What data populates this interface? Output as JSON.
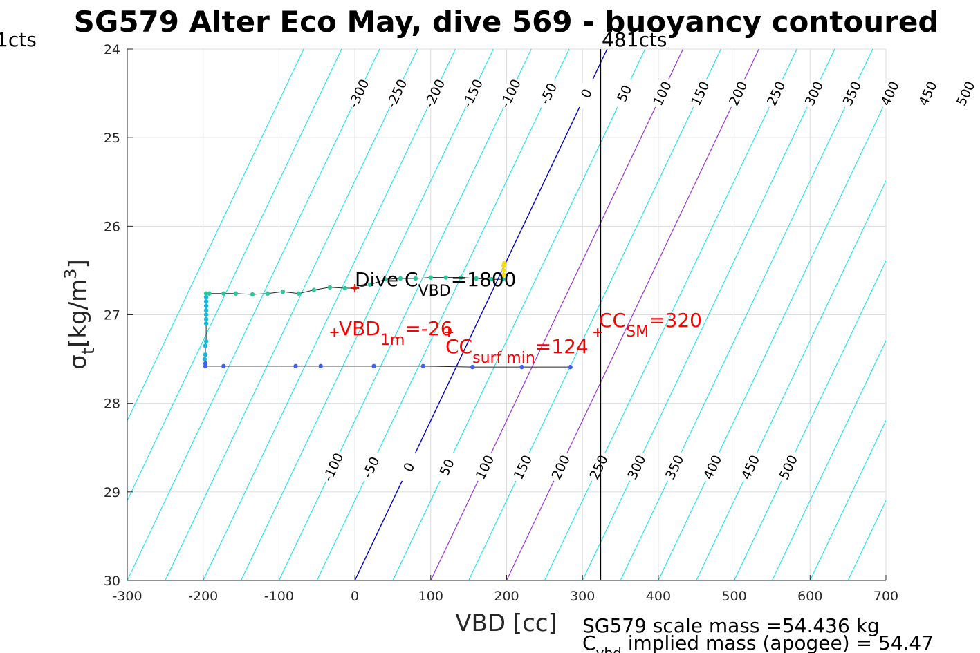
{
  "chart_data": {
    "type": "line",
    "title": "SG579 Alter Eco May, dive 569 - buoyancy contoured",
    "xlabel": "VBD [cc]",
    "ylabel_main": "σ",
    "ylabel_sub": "t",
    "ylabel_unit_pre": "[kg/m",
    "ylabel_unit_sup": "3",
    "ylabel_unit_post": "]",
    "xlim": [
      -300,
      700
    ],
    "ylim": [
      24,
      30
    ],
    "y_reversed": true,
    "grid": true,
    "xticks": [
      -300,
      -200,
      -100,
      0,
      100,
      200,
      300,
      400,
      500,
      600,
      700
    ],
    "yticks": [
      24,
      25,
      26,
      27,
      28,
      29,
      30
    ],
    "left_top_label": "1cts",
    "vline": {
      "x": 324,
      "label": "481cts",
      "color": "#000000"
    },
    "contours": {
      "values": [
        -400,
        -350,
        -300,
        -250,
        -200,
        -150,
        -100,
        -50,
        0,
        50,
        100,
        150,
        200,
        250,
        300,
        350,
        400,
        450,
        500,
        550,
        600,
        650
      ],
      "highlight_blue": [
        0
      ],
      "highlight_purple": [
        100,
        200
      ],
      "top_labels": [
        "-300",
        "-250",
        "-200",
        "-150",
        "-100",
        "-50",
        "0",
        "50",
        "100",
        "150",
        "200",
        "250",
        "300",
        "350",
        "400",
        "450",
        "500"
      ],
      "bottom_labels": [
        "-100",
        "-50",
        "0",
        "50",
        "100",
        "150",
        "200",
        "250",
        "300",
        "350",
        "400",
        "450",
        "500"
      ],
      "colors": {
        "default": "#00e5e5",
        "blue": "#0000cc",
        "purple": "#9933dd"
      }
    },
    "series": [
      {
        "points": [
          [
            284,
            27.59
          ],
          [
            220,
            27.59
          ],
          [
            155,
            27.59
          ],
          [
            90,
            27.58
          ],
          [
            25,
            27.58
          ],
          [
            -45,
            27.58
          ],
          [
            -78,
            27.58
          ],
          [
            -173,
            27.58
          ],
          [
            -197,
            27.58
          ],
          [
            -197,
            27.55
          ],
          [
            -198,
            27.5
          ],
          [
            -197,
            27.45
          ],
          [
            -197,
            27.35
          ],
          [
            -196,
            27.3
          ],
          [
            -196,
            27.1
          ],
          [
            -196,
            27.05
          ],
          [
            -196,
            27.0
          ],
          [
            -196,
            26.95
          ],
          [
            -196,
            26.9
          ],
          [
            -196,
            26.85
          ],
          [
            -196,
            26.8
          ],
          [
            -196,
            26.76
          ],
          [
            -192,
            26.76
          ],
          [
            -173,
            26.76
          ],
          [
            -157,
            26.76
          ],
          [
            -135,
            26.77
          ],
          [
            -115,
            26.76
          ],
          [
            -95,
            26.74
          ],
          [
            -74,
            26.76
          ],
          [
            -54,
            26.72
          ],
          [
            -33,
            26.69
          ],
          [
            -13,
            26.7
          ],
          [
            0,
            26.7
          ],
          [
            20,
            26.66
          ],
          [
            40,
            26.6
          ],
          [
            60,
            26.59
          ],
          [
            80,
            26.59
          ],
          [
            100,
            26.58
          ],
          [
            120,
            26.58
          ],
          [
            140,
            26.58
          ],
          [
            160,
            26.59
          ],
          [
            180,
            26.6
          ],
          [
            195,
            26.6
          ],
          [
            196,
            26.55
          ],
          [
            196,
            26.5
          ],
          [
            196,
            26.45
          ],
          [
            197,
            26.42
          ]
        ]
      }
    ],
    "markers": [
      {
        "x": 0,
        "y": 26.7,
        "color": "#ff0000"
      },
      {
        "x": -27,
        "y": 27.2,
        "color": "#ff0000"
      },
      {
        "x": 124,
        "y": 27.2,
        "color": "#ff0000"
      },
      {
        "x": 320,
        "y": 27.2,
        "color": "#ff0000"
      }
    ],
    "annotations": {
      "dive_cvbd": {
        "pre": "Dive C",
        "sub": "VBD",
        "post": "=1800"
      },
      "vbd_1m": {
        "pre": "VBD",
        "sub": "1m",
        "post": "=-26"
      },
      "cc_surf_min": {
        "pre": "CC",
        "sub": "surf min",
        "post": "=124"
      },
      "cc_sm": {
        "pre": "CC",
        "sub": "SM",
        "post": "=320"
      }
    },
    "footer": {
      "scale_mass": "SG579 scale mass =54.436 kg",
      "implied_pre": "C",
      "implied_sub": "vbd",
      "implied_post": " implied mass (apogee) = 54.47"
    },
    "colors": {
      "annotation": "#ff0000",
      "axis": "#262626",
      "grid": "#dcdcdc"
    }
  }
}
